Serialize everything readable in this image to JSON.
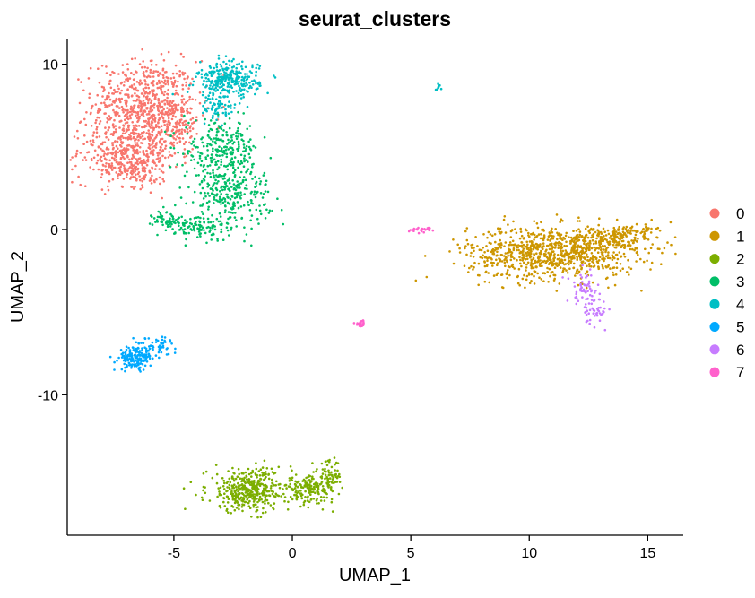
{
  "chart_data": {
    "type": "scatter",
    "title": "seurat_clusters",
    "xlabel": "UMAP_1",
    "ylabel": "UMAP_2",
    "xlim": [
      -9.5,
      16.5
    ],
    "ylim": [
      -18.5,
      11.5
    ],
    "xticks": [
      -5,
      0,
      5,
      10,
      15
    ],
    "yticks": [
      10,
      0,
      -10
    ],
    "grid": false,
    "legend_position": "right",
    "series": [
      {
        "name": "0",
        "color": "#F8766D",
        "clusters": [
          {
            "cx": -6.2,
            "cy": 7.6,
            "sx": 1.1,
            "sy": 1.3,
            "n": 650
          },
          {
            "cx": -7.0,
            "cy": 4.6,
            "sx": 1.1,
            "sy": 0.9,
            "n": 380
          },
          {
            "cx": -5.0,
            "cy": 6.4,
            "sx": 0.6,
            "sy": 0.7,
            "n": 120
          },
          {
            "cx": -6.6,
            "cy": 3.6,
            "sx": 0.7,
            "sy": 0.5,
            "n": 90
          }
        ]
      },
      {
        "name": "1",
        "color": "#CD9600",
        "clusters": [
          {
            "cx": 11.0,
            "cy": -1.4,
            "sx": 1.8,
            "sy": 0.8,
            "n": 900
          },
          {
            "cx": 13.5,
            "cy": -0.5,
            "sx": 0.9,
            "sy": 0.35,
            "n": 150
          },
          {
            "cx": 14.7,
            "cy": 0.0,
            "sx": 0.35,
            "sy": 0.2,
            "n": 40
          }
        ]
      },
      {
        "name": "2",
        "color": "#7CAE00",
        "clusters": [
          {
            "cx": -1.8,
            "cy": -15.8,
            "sx": 0.9,
            "sy": 0.65,
            "n": 420
          },
          {
            "cx": 0.8,
            "cy": -15.7,
            "sx": 0.55,
            "sy": 0.4,
            "n": 170
          },
          {
            "cx": 1.6,
            "cy": -14.8,
            "sx": 0.25,
            "sy": 0.4,
            "n": 50
          }
        ]
      },
      {
        "name": "3",
        "color": "#00BE67",
        "clusters": [
          {
            "cx": -3.0,
            "cy": 4.8,
            "sx": 0.8,
            "sy": 0.9,
            "n": 250
          },
          {
            "cx": -2.6,
            "cy": 2.2,
            "sx": 0.85,
            "sy": 0.9,
            "n": 260
          },
          {
            "cx": -3.8,
            "cy": 0.1,
            "sx": 0.55,
            "sy": 0.4,
            "n": 100
          },
          {
            "cx": -5.2,
            "cy": 0.5,
            "sx": 0.35,
            "sy": 0.3,
            "n": 60
          }
        ]
      },
      {
        "name": "4",
        "color": "#00BFC4",
        "clusters": [
          {
            "cx": -2.7,
            "cy": 9.0,
            "sx": 0.65,
            "sy": 0.55,
            "n": 300
          },
          {
            "cx": -3.2,
            "cy": 7.3,
            "sx": 0.4,
            "sy": 0.35,
            "n": 60
          },
          {
            "cx": 6.2,
            "cy": 8.6,
            "sx": 0.08,
            "sy": 0.08,
            "n": 8
          }
        ]
      },
      {
        "name": "5",
        "color": "#00A9FF",
        "clusters": [
          {
            "cx": -6.6,
            "cy": -7.8,
            "sx": 0.35,
            "sy": 0.35,
            "n": 160
          },
          {
            "cx": -5.8,
            "cy": -7.0,
            "sx": 0.45,
            "sy": 0.3,
            "n": 60
          }
        ]
      },
      {
        "name": "6",
        "color": "#C77CFF",
        "clusters": [
          {
            "cx": 12.3,
            "cy": -3.7,
            "sx": 0.35,
            "sy": 0.5,
            "n": 60
          },
          {
            "cx": 12.8,
            "cy": -4.9,
            "sx": 0.25,
            "sy": 0.4,
            "n": 40
          }
        ]
      },
      {
        "name": "7",
        "color": "#FF61CC",
        "clusters": [
          {
            "cx": 2.9,
            "cy": -5.7,
            "sx": 0.1,
            "sy": 0.1,
            "n": 20
          },
          {
            "cx": 5.6,
            "cy": 0.0,
            "sx": 0.3,
            "sy": 0.08,
            "n": 25
          }
        ]
      }
    ]
  }
}
